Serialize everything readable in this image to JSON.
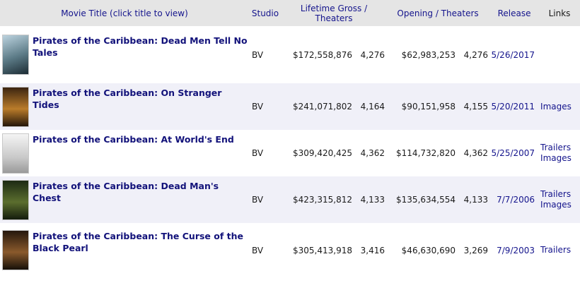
{
  "headers": {
    "title": "Movie Title (click title to view)",
    "studio": "Studio",
    "gross": "Lifetime Gross / Theaters",
    "opening": "Opening / Theaters",
    "release": "Release",
    "links": "Links"
  },
  "rows": [
    {
      "title": "Pirates of the Caribbean: Dead Men Tell No Tales",
      "studio": "BV",
      "gross": "$172,558,876",
      "gross_theaters": "4,276",
      "opening": "$62,983,253",
      "opening_theaters": "4,276",
      "release": "5/26/2017",
      "links": []
    },
    {
      "title": "Pirates of the Caribbean: On Stranger Tides",
      "studio": "BV",
      "gross": "$241,071,802",
      "gross_theaters": "4,164",
      "opening": "$90,151,958",
      "opening_theaters": "4,155",
      "release": "5/20/2011",
      "links": [
        "Images"
      ]
    },
    {
      "title": "Pirates of the Caribbean: At World's End",
      "studio": "BV",
      "gross": "$309,420,425",
      "gross_theaters": "4,362",
      "opening": "$114,732,820",
      "opening_theaters": "4,362",
      "release": "5/25/2007",
      "links": [
        "Trailers",
        "Images"
      ]
    },
    {
      "title": "Pirates of the Caribbean: Dead Man's Chest",
      "studio": "BV",
      "gross": "$423,315,812",
      "gross_theaters": "4,133",
      "opening": "$135,634,554",
      "opening_theaters": "4,133",
      "release": "7/7/2006",
      "links": [
        "Trailers",
        "Images"
      ]
    },
    {
      "title": "Pirates of the Caribbean: The Curse of the Black Pearl",
      "studio": "BV",
      "gross": "$305,413,918",
      "gross_theaters": "3,416",
      "opening": "$46,630,690",
      "opening_theaters": "3,269",
      "release": "7/9/2003",
      "links": [
        "Trailers"
      ]
    }
  ]
}
